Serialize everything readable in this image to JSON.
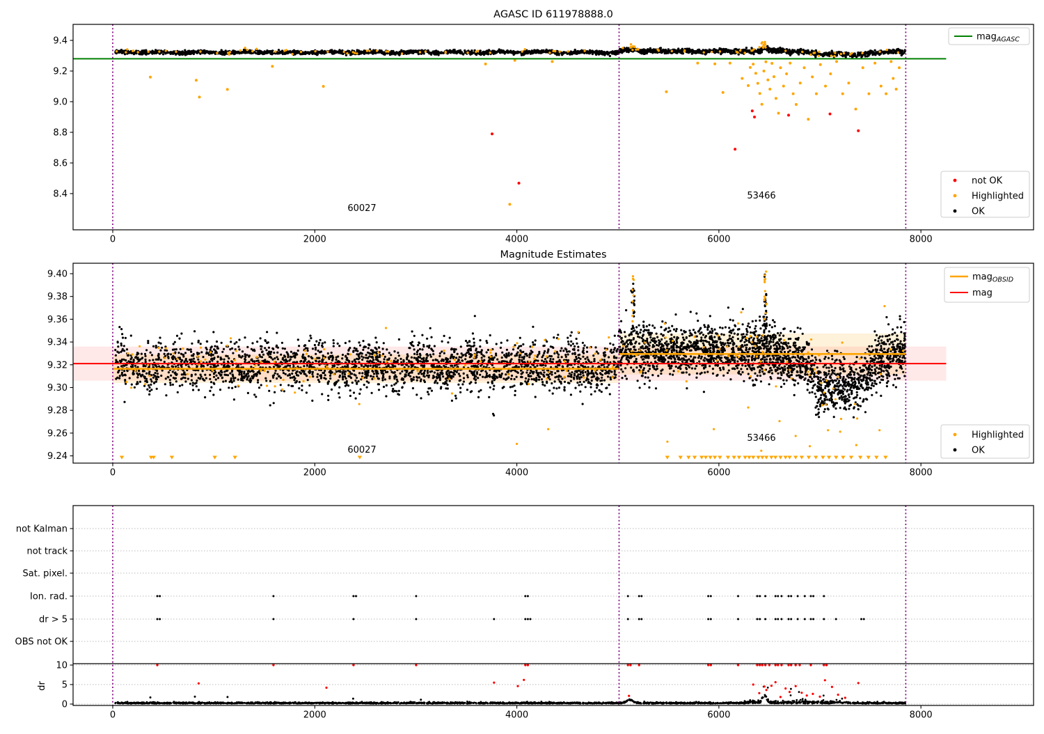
{
  "colors": {
    "ok": "#000000",
    "highlighted": "#ffa500",
    "not_ok": "#ff0000",
    "mag_agasc": "#008000",
    "mag": "#ff0000",
    "mag_obsid": "#ffa500",
    "vline": "#800080",
    "band_pink": "rgba(255,0,0,0.09)",
    "band_cream": "rgba(255,165,0,0.14)",
    "grid": "#bbbbbb",
    "spine": "#000000"
  },
  "chart_data": [
    {
      "type": "scatter",
      "title": "AGASC ID 611978888.0",
      "xticks": {
        "values": [
          0,
          2000,
          4000,
          6000,
          8000
        ],
        "labels": [
          "0",
          "2000",
          "4000",
          "6000",
          "8000"
        ]
      },
      "yticks": {
        "values": [
          9.4,
          9.2,
          9.0,
          8.8,
          8.6,
          8.4
        ],
        "labels": [
          "9.4",
          "9.2",
          "9.0",
          "8.8",
          "8.6",
          "8.4"
        ]
      },
      "xlim": [
        -392,
        9110
      ],
      "ylim": [
        8.16,
        9.505
      ],
      "vlines": [
        0,
        5012,
        7850
      ],
      "hline": {
        "value": 9.28,
        "span": [
          -390,
          8250
        ],
        "legend": {
          "prefix": "mag",
          "sub": "AGASC"
        }
      },
      "legend_items": [
        {
          "label": "not OK",
          "color_key": "not_ok"
        },
        {
          "label": "Highlighted",
          "color_key": "highlighted"
        },
        {
          "label": "OK",
          "color_key": "ok"
        }
      ],
      "annotations": [
        {
          "text": "60027",
          "x": 2465,
          "y": 8.29
        },
        {
          "text": "53466",
          "x": 6425,
          "y": 8.37
        }
      ],
      "band": {
        "segments": [
          {
            "x0": 25,
            "x1": 5008,
            "n": 1500,
            "profile": [
              [
                25,
                9.322
              ],
              [
                5008,
                9.322
              ]
            ],
            "sigma": 0.0062,
            "wiggle_amp": 0.0035,
            "wiggle_period": 420
          },
          {
            "x0": 5012,
            "x1": 7845,
            "n": 1000,
            "profile": [
              [
                5012,
                9.331
              ],
              [
                5500,
                9.33
              ],
              [
                6800,
                9.328
              ],
              [
                6900,
                9.317
              ],
              [
                7000,
                9.31
              ],
              [
                7400,
                9.307
              ],
              [
                7550,
                9.321
              ],
              [
                7845,
                9.327
              ]
            ],
            "sigma": 0.0075,
            "wiggle_amp": 0.003,
            "wiggle_period": 300,
            "bumps": [
              {
                "c": 5150,
                "w": 60,
                "a": 0.012
              },
              {
                "c": 6460,
                "w": 45,
                "a": 0.02
              }
            ]
          }
        ],
        "highlight_sprinkle": {
          "n": 95,
          "bias": 0.004,
          "sigma_mult": 1.15
        },
        "highlight_columns": [
          {
            "c": 5150,
            "w": 25,
            "n": 7,
            "lo": 9.352,
            "hi": 9.374
          },
          {
            "c": 6445,
            "w": 22,
            "n": 9,
            "lo": 9.358,
            "hi": 9.392
          }
        ]
      },
      "outliers": {
        "highlighted": [
          [
            372,
            9.16
          ],
          [
            826,
            9.14
          ],
          [
            858,
            9.03
          ],
          [
            1135,
            9.08
          ],
          [
            1580,
            9.231
          ],
          [
            2085,
            9.1
          ],
          [
            3690,
            9.246
          ],
          [
            3930,
            8.33
          ],
          [
            3980,
            9.27
          ],
          [
            4350,
            9.262
          ],
          [
            5480,
            9.065
          ],
          [
            5790,
            9.252
          ],
          [
            5960,
            9.247
          ],
          [
            6040,
            9.06
          ],
          [
            6110,
            9.252
          ],
          [
            6230,
            9.152
          ],
          [
            6290,
            9.105
          ],
          [
            6310,
            9.223
          ],
          [
            6340,
            9.245
          ],
          [
            6365,
            9.185
          ],
          [
            6385,
            9.12
          ],
          [
            6405,
            9.053
          ],
          [
            6425,
            8.983
          ],
          [
            6445,
            9.2
          ],
          [
            6465,
            9.26
          ],
          [
            6485,
            9.142
          ],
          [
            6505,
            9.082
          ],
          [
            6525,
            9.25
          ],
          [
            6545,
            9.163
          ],
          [
            6565,
            9.022
          ],
          [
            6590,
            8.925
          ],
          [
            6610,
            9.222
          ],
          [
            6640,
            9.102
          ],
          [
            6670,
            9.182
          ],
          [
            6705,
            9.252
          ],
          [
            6735,
            9.052
          ],
          [
            6765,
            8.982
          ],
          [
            6805,
            9.122
          ],
          [
            6845,
            9.222
          ],
          [
            6885,
            8.885
          ],
          [
            6925,
            9.162
          ],
          [
            6965,
            9.052
          ],
          [
            7005,
            9.242
          ],
          [
            7055,
            9.102
          ],
          [
            7105,
            9.182
          ],
          [
            7165,
            9.262
          ],
          [
            7225,
            9.052
          ],
          [
            7285,
            9.122
          ],
          [
            7355,
            8.952
          ],
          [
            7425,
            9.222
          ],
          [
            7485,
            9.052
          ],
          [
            7545,
            9.252
          ],
          [
            7605,
            9.102
          ],
          [
            7655,
            9.052
          ],
          [
            7705,
            9.262
          ],
          [
            7725,
            9.152
          ],
          [
            7755,
            9.082
          ],
          [
            7785,
            9.222
          ]
        ],
        "not_ok": [
          [
            3755,
            8.79
          ],
          [
            4020,
            8.468
          ],
          [
            6160,
            8.69
          ],
          [
            6330,
            8.94
          ],
          [
            6352,
            8.9
          ],
          [
            6690,
            8.912
          ],
          [
            7100,
            8.92
          ],
          [
            7380,
            8.81
          ]
        ]
      }
    },
    {
      "type": "scatter",
      "title": "Magnitude Estimates",
      "xticks": {
        "values": [
          0,
          2000,
          4000,
          6000,
          8000
        ],
        "labels": [
          "0",
          "2000",
          "4000",
          "6000",
          "8000"
        ]
      },
      "yticks": {
        "values": [
          9.4,
          9.38,
          9.36,
          9.34,
          9.32,
          9.3,
          9.28,
          9.26,
          9.24
        ],
        "labels": [
          "9.40",
          "9.38",
          "9.36",
          "9.34",
          "9.32",
          "9.30",
          "9.28",
          "9.26",
          "9.24"
        ]
      },
      "xlim": [
        -392,
        9110
      ],
      "ylim": [
        9.2336,
        9.4092
      ],
      "vlines": [
        0,
        5012,
        7850
      ],
      "lines": {
        "mag": {
          "value": 9.321,
          "span": [
            -390,
            8250
          ],
          "label": "mag"
        },
        "mag_obsid": {
          "segments": [
            {
              "x0": 0,
              "x1": 5012,
              "value": 9.3165
            },
            {
              "x0": 5012,
              "x1": 7850,
              "value": 9.3295
            }
          ],
          "legend": {
            "prefix": "mag",
            "sub": "OBSID"
          }
        }
      },
      "bands": {
        "pink": {
          "y0": 9.306,
          "y1": 9.336,
          "span": [
            -390,
            8250
          ]
        },
        "cream": [
          {
            "y0": 9.304,
            "y1": 9.329,
            "span": [
              0,
              5012
            ]
          },
          {
            "y0": 9.3115,
            "y1": 9.3475,
            "span": [
              5012,
              7850
            ]
          }
        ]
      },
      "legend_items": [
        {
          "label": "Highlighted",
          "color_key": "highlighted"
        },
        {
          "label": "OK",
          "color_key": "ok"
        }
      ],
      "annotations": [
        {
          "text": "60027",
          "x": 2465,
          "y": 9.2455
        },
        {
          "text": "53466",
          "x": 6425,
          "y": 9.2555
        }
      ],
      "cloud": {
        "segments": [
          {
            "x0": 25,
            "x1": 5008,
            "n": 2600,
            "profile": [
              [
                25,
                9.3195
              ],
              [
                5008,
                9.3185
              ]
            ],
            "sigma": 0.0105,
            "wiggle_amp": 0.002,
            "wiggle_period": 500
          },
          {
            "x0": 5012,
            "x1": 7845,
            "n": 2300,
            "profile": [
              [
                5012,
                9.3295
              ],
              [
                5200,
                9.3325
              ],
              [
                6400,
                9.3315
              ],
              [
                6550,
                9.3305
              ],
              [
                6800,
                9.326
              ],
              [
                6950,
                9.308
              ],
              [
                7100,
                9.302
              ],
              [
                7350,
                9.3035
              ],
              [
                7500,
                9.3145
              ],
              [
                7650,
                9.3265
              ],
              [
                7845,
                9.3305
              ]
            ],
            "sigma": 0.0115,
            "wiggle_amp": 0.0015,
            "wiggle_period": 350
          }
        ],
        "black_columns": [
          {
            "c": 5150,
            "w": 18,
            "n": 26,
            "lo": 9.335,
            "hi": 9.392
          },
          {
            "c": 6460,
            "w": 15,
            "n": 40,
            "lo": 9.335,
            "hi": 9.401
          }
        ],
        "highlight_sprinkle": {
          "n": 175,
          "bias": 0.002,
          "sigma_mult": 1.3
        },
        "highlight_columns": [
          {
            "c": 5150,
            "w": 10,
            "n": 9,
            "lo": 9.352,
            "hi": 9.403
          },
          {
            "c": 6460,
            "w": 10,
            "n": 14,
            "lo": 9.357,
            "hi": 9.403
          }
        ]
      },
      "outliers": {
        "highlighted_low": [
          [
            2440,
            9.2855
          ],
          [
            4000,
            9.2505
          ],
          [
            4310,
            9.2635
          ],
          [
            5490,
            9.2525
          ],
          [
            5950,
            9.2635
          ],
          [
            6290,
            9.2825
          ],
          [
            6420,
            9.2445
          ],
          [
            6600,
            9.2705
          ],
          [
            6760,
            9.2575
          ],
          [
            6900,
            9.2485
          ],
          [
            7080,
            9.2625
          ],
          [
            7210,
            9.2725
          ],
          [
            7360,
            9.2495
          ],
          [
            7590,
            9.2625
          ]
        ]
      },
      "clipped_triangles": {
        "y": 9.2385,
        "x": [
          90,
          380,
          405,
          585,
          1010,
          1210,
          2445,
          5490,
          5620,
          5700,
          5760,
          5830,
          5870,
          5915,
          5960,
          6010,
          6090,
          6150,
          6200,
          6260,
          6300,
          6340,
          6390,
          6430,
          6470,
          6520,
          6560,
          6610,
          6660,
          6700,
          6760,
          6820,
          6890,
          6960,
          7030,
          7090,
          7160,
          7230,
          7310,
          7400,
          7480,
          7560,
          7650
        ]
      }
    },
    {
      "type": "scatter",
      "title": "",
      "categories": [
        "not Kalman",
        "not track",
        "Sat. pixel.",
        "Ion. rad.",
        "dr > 5",
        "OBS not OK"
      ],
      "dr_axis": {
        "label": "dr",
        "ticks": {
          "values": [
            10,
            5,
            0
          ],
          "labels": [
            "10",
            "5",
            "0"
          ]
        }
      },
      "xticks": {
        "values": [
          0,
          2000,
          4000,
          6000,
          8000
        ],
        "labels": [
          "0",
          "2000",
          "4000",
          "6000",
          "8000"
        ]
      },
      "vlines": [
        0,
        5012,
        7850
      ],
      "flags": {
        "not_kalman": [],
        "not_track": [],
        "sat_pixel": [],
        "ion_rad": [
          441,
          466,
          1591,
          2383,
          2408,
          3003,
          4084,
          4109,
          5100,
          5210,
          5235,
          5895,
          5920,
          6190,
          6380,
          6405,
          6460,
          6560,
          6585,
          6620,
          6690,
          6715,
          6780,
          6850,
          6910,
          6935,
          7040
        ],
        "dr_gt5": [
          441,
          466,
          1591,
          2383,
          3003,
          3774,
          4084,
          4109,
          4134,
          5100,
          5210,
          5235,
          5895,
          5920,
          6190,
          6380,
          6405,
          6460,
          6560,
          6585,
          6620,
          6690,
          6715,
          6780,
          6850,
          6910,
          6935,
          7040,
          7160,
          7410,
          7435
        ],
        "obs_not_ok": []
      },
      "dr_clipped_red": [
        441,
        1591,
        2383,
        3003,
        4084,
        4109,
        5100,
        5125,
        5210,
        5895,
        5920,
        6190,
        6380,
        6405,
        6430,
        6460,
        6500,
        6560,
        6585,
        6620,
        6690,
        6715,
        6760,
        6800,
        6910,
        7040,
        7065
      ],
      "dr_red_points": [
        [
          850,
          5.3
        ],
        [
          2115,
          4.2
        ],
        [
          3774,
          5.5
        ],
        [
          4010,
          4.6
        ],
        [
          4070,
          6.2
        ],
        [
          5110,
          2.1
        ],
        [
          6340,
          5.0
        ],
        [
          6400,
          2.8
        ],
        [
          6450,
          4.5
        ],
        [
          6470,
          3.6
        ],
        [
          6520,
          4.7
        ],
        [
          6560,
          5.6
        ],
        [
          6610,
          1.8
        ],
        [
          6660,
          4.0
        ],
        [
          6700,
          3.1
        ],
        [
          6760,
          4.6
        ],
        [
          6820,
          2.9
        ],
        [
          6870,
          2.2
        ],
        [
          6930,
          2.6
        ],
        [
          7000,
          1.9
        ],
        [
          7050,
          6.1
        ],
        [
          7120,
          4.4
        ],
        [
          7180,
          2.4
        ],
        [
          7250,
          1.6
        ],
        [
          7380,
          5.4
        ]
      ],
      "dr_black_extra": [
        [
          372,
          1.7
        ],
        [
          813,
          1.9
        ],
        [
          1136,
          1.8
        ],
        [
          2380,
          1.4
        ],
        [
          3050,
          1.1
        ]
      ],
      "dr_band": {
        "x0": 25,
        "x1": 7845,
        "n": 2300,
        "noisy_range": [
          6250,
          7300
        ],
        "noisy_mult": 2.4,
        "spike_prob": 0.05,
        "spike_max": 3.5,
        "bumps": [
          {
            "c": 5120,
            "w": 45,
            "a": 0.8
          },
          {
            "c": 6450,
            "w": 28,
            "a": 1.8
          }
        ]
      }
    }
  ]
}
